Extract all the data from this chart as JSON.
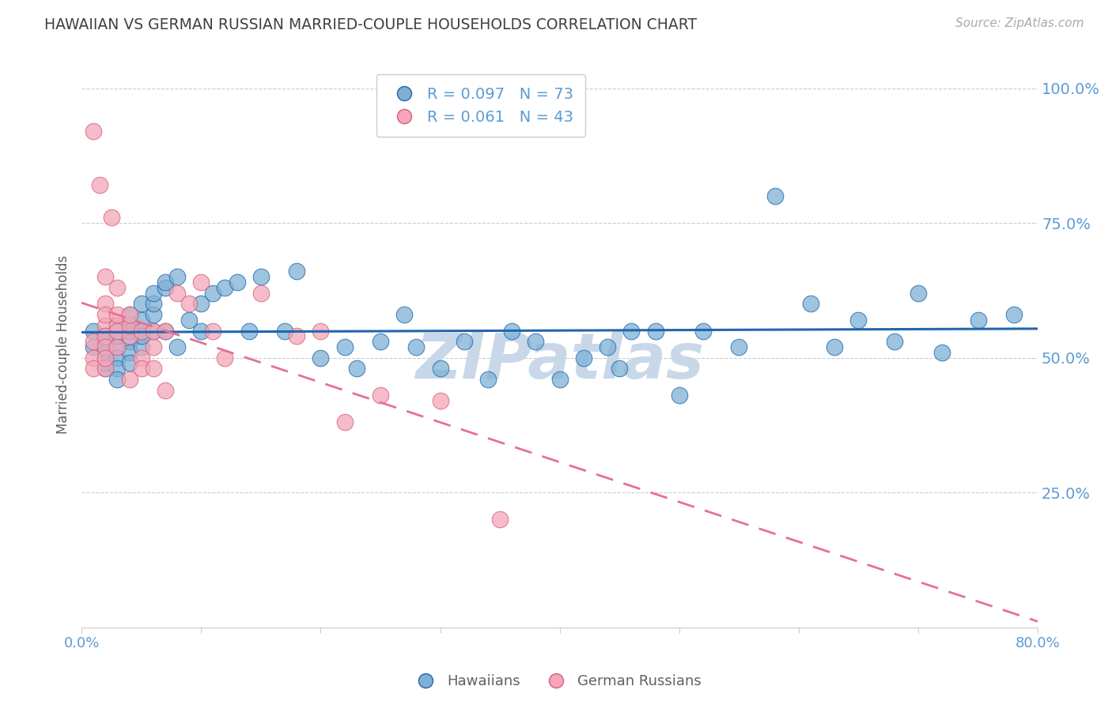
{
  "title": "HAWAIIAN VS GERMAN RUSSIAN MARRIED-COUPLE HOUSEHOLDS CORRELATION CHART",
  "source": "Source: ZipAtlas.com",
  "ylabel": "Married-couple Households",
  "legend_hawaiians": "Hawaiians",
  "legend_german_russians": "German Russians",
  "R_hawaiians": 0.097,
  "N_hawaiians": 73,
  "R_german_russians": 0.061,
  "N_german_russians": 43,
  "color_hawaiians": "#7eb0d5",
  "color_german_russians": "#f4a6b8",
  "color_trendline_hawaiians": "#2166ac",
  "color_trendline_german_russians": "#e87090",
  "color_axis_labels": "#5b9bd5",
  "color_title": "#404040",
  "color_grid": "#cccccc",
  "color_watermark": "#c8d8e8",
  "xlim": [
    0.0,
    0.8
  ],
  "ylim": [
    0.0,
    1.05
  ],
  "yticks": [
    0.25,
    0.5,
    0.75,
    1.0
  ],
  "ytick_labels": [
    "25.0%",
    "50.0%",
    "75.0%",
    "100.0%"
  ],
  "xticks": [
    0.0,
    0.1,
    0.2,
    0.3,
    0.4,
    0.5,
    0.6,
    0.7,
    0.8
  ],
  "xtick_labels": [
    "0.0%",
    "",
    "",
    "",
    "",
    "",
    "",
    "",
    "80.0%"
  ],
  "hawaiians_x": [
    0.01,
    0.01,
    0.02,
    0.02,
    0.02,
    0.02,
    0.02,
    0.02,
    0.03,
    0.03,
    0.03,
    0.03,
    0.03,
    0.03,
    0.04,
    0.04,
    0.04,
    0.04,
    0.04,
    0.04,
    0.05,
    0.05,
    0.05,
    0.05,
    0.05,
    0.06,
    0.06,
    0.06,
    0.06,
    0.07,
    0.07,
    0.07,
    0.08,
    0.08,
    0.09,
    0.1,
    0.1,
    0.11,
    0.12,
    0.13,
    0.14,
    0.15,
    0.17,
    0.18,
    0.2,
    0.22,
    0.23,
    0.25,
    0.27,
    0.28,
    0.3,
    0.32,
    0.34,
    0.36,
    0.38,
    0.4,
    0.42,
    0.44,
    0.45,
    0.46,
    0.48,
    0.5,
    0.52,
    0.55,
    0.58,
    0.61,
    0.63,
    0.65,
    0.68,
    0.7,
    0.72,
    0.75,
    0.78
  ],
  "hawaiians_y": [
    0.52,
    0.55,
    0.5,
    0.53,
    0.48,
    0.54,
    0.51,
    0.49,
    0.52,
    0.54,
    0.5,
    0.48,
    0.46,
    0.56,
    0.53,
    0.56,
    0.55,
    0.51,
    0.49,
    0.58,
    0.6,
    0.55,
    0.52,
    0.57,
    0.54,
    0.58,
    0.55,
    0.6,
    0.62,
    0.63,
    0.64,
    0.55,
    0.65,
    0.52,
    0.57,
    0.6,
    0.55,
    0.62,
    0.63,
    0.64,
    0.55,
    0.65,
    0.55,
    0.66,
    0.5,
    0.52,
    0.48,
    0.53,
    0.58,
    0.52,
    0.48,
    0.53,
    0.46,
    0.55,
    0.53,
    0.46,
    0.5,
    0.52,
    0.48,
    0.55,
    0.55,
    0.43,
    0.55,
    0.52,
    0.8,
    0.6,
    0.52,
    0.57,
    0.53,
    0.62,
    0.51,
    0.57,
    0.58
  ],
  "german_russians_x": [
    0.01,
    0.01,
    0.01,
    0.01,
    0.015,
    0.02,
    0.02,
    0.02,
    0.02,
    0.02,
    0.02,
    0.02,
    0.02,
    0.025,
    0.03,
    0.03,
    0.03,
    0.03,
    0.03,
    0.04,
    0.04,
    0.04,
    0.04,
    0.05,
    0.05,
    0.05,
    0.06,
    0.06,
    0.06,
    0.07,
    0.07,
    0.08,
    0.09,
    0.1,
    0.11,
    0.12,
    0.15,
    0.18,
    0.2,
    0.22,
    0.25,
    0.3,
    0.35
  ],
  "german_russians_y": [
    0.92,
    0.5,
    0.48,
    0.53,
    0.82,
    0.56,
    0.54,
    0.52,
    0.6,
    0.58,
    0.65,
    0.48,
    0.5,
    0.76,
    0.56,
    0.58,
    0.52,
    0.55,
    0.63,
    0.54,
    0.56,
    0.58,
    0.46,
    0.55,
    0.5,
    0.48,
    0.52,
    0.55,
    0.48,
    0.55,
    0.44,
    0.62,
    0.6,
    0.64,
    0.55,
    0.5,
    0.62,
    0.54,
    0.55,
    0.38,
    0.43,
    0.42,
    0.2
  ]
}
